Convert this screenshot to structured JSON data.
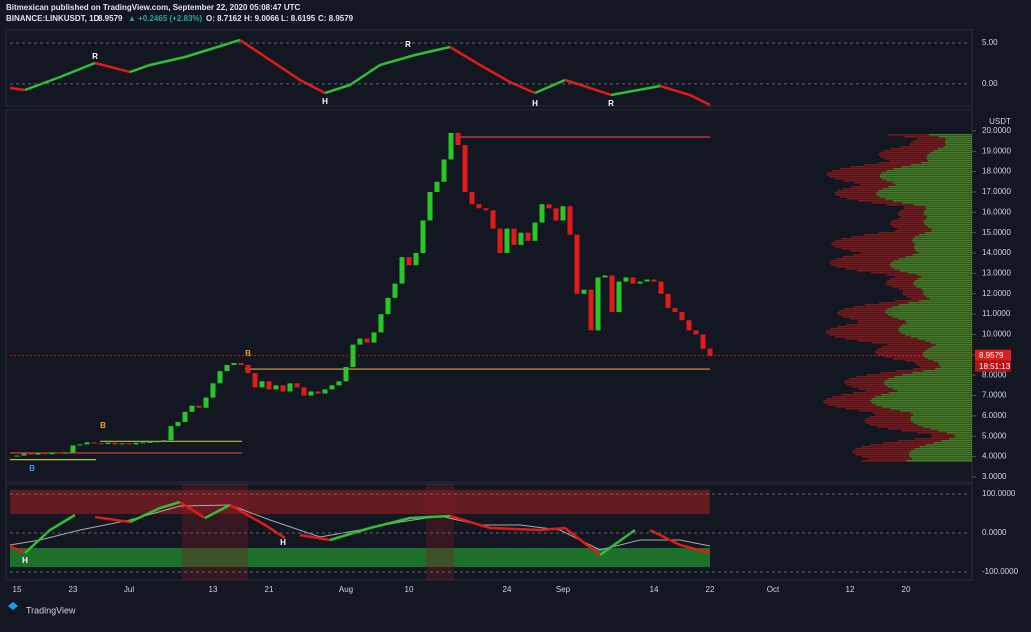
{
  "header": {
    "publisher": "Bitmexican published on TradingView.com, September 22, 2020 05:08:47 UTC",
    "symbol": "BINANCE:LINKUSDT, 1D",
    "last": "8.9579",
    "change": "▲ +0.2465 (+2.83%)",
    "open": "O: 8.7162",
    "high": "H: 9.0066",
    "low": "L: 8.6195",
    "close": "C: 8.9579"
  },
  "footer": "TradingView",
  "chart_data": {
    "type": "candlestick",
    "currency": "USDT",
    "categories": [
      "15",
      null,
      null,
      null,
      null,
      null,
      null,
      null,
      "23",
      null,
      null,
      null,
      null,
      null,
      null,
      null,
      "Jul",
      null,
      null,
      null,
      null,
      null,
      null,
      null,
      null,
      null,
      null,
      null,
      "13",
      null,
      null,
      null,
      null,
      null,
      null,
      null,
      "21",
      null,
      null,
      null,
      null,
      null,
      null,
      null,
      null,
      null,
      null,
      "Aug",
      null,
      null,
      null,
      null,
      null,
      null,
      null,
      null,
      "10",
      null,
      null,
      null,
      null,
      null,
      null,
      null,
      null,
      null,
      null,
      null,
      null,
      null,
      "24",
      null,
      null,
      null,
      null,
      null,
      null,
      null,
      "Sep",
      null,
      null,
      null,
      null,
      null,
      null,
      null,
      null,
      null,
      null,
      null,
      null,
      "14",
      null,
      null,
      null,
      null,
      null,
      null,
      null,
      "22",
      null,
      null,
      null,
      null,
      null,
      null,
      null,
      null,
      "Oct",
      null,
      null,
      null,
      null,
      null,
      null,
      null,
      null,
      null,
      null,
      "12",
      null,
      null,
      null,
      null,
      null,
      null,
      null,
      "20",
      null,
      null,
      null,
      null,
      null,
      null,
      null,
      null,
      null,
      null
    ],
    "values": [
      4.05,
      4.15,
      4.1,
      4.18,
      4.12,
      4.2,
      4.15,
      4.2,
      4.55,
      4.6,
      4.7,
      4.65,
      4.62,
      4.68,
      4.6,
      4.65,
      4.6,
      4.68,
      4.7,
      4.72,
      4.75,
      4.8,
      5.5,
      5.7,
      6.2,
      6.5,
      6.4,
      6.9,
      7.6,
      8.2,
      8.5,
      8.6,
      8.5,
      8.1,
      7.4,
      7.7,
      7.3,
      7.5,
      7.2,
      7.6,
      7.4,
      7.0,
      7.2,
      7.1,
      7.3,
      7.5,
      7.7,
      8.4,
      9.5,
      9.8,
      9.6,
      10.1,
      11.0,
      11.8,
      12.5,
      13.8,
      13.4,
      14.0,
      15.6,
      17.0,
      17.5,
      18.6,
      19.9,
      19.3,
      17.0,
      16.4,
      16.2,
      16.1,
      15.2,
      14.0,
      15.2,
      14.4,
      15.0,
      14.6,
      15.5,
      16.4,
      16.2,
      15.6,
      16.3,
      14.9,
      12.0,
      12.2,
      10.2,
      12.8,
      12.9,
      11.1,
      12.6,
      12.8,
      12.5,
      12.6,
      12.7,
      12.6,
      12.0,
      11.3,
      11.1,
      10.7,
      10.2,
      10.0,
      9.3,
      8.9579,
      null,
      null,
      null,
      null,
      null,
      null,
      null,
      null,
      null,
      null,
      null,
      null,
      null,
      null,
      null,
      null,
      null,
      null,
      null,
      null,
      null,
      null,
      null,
      null,
      null,
      null,
      null,
      null,
      null,
      null,
      null,
      null,
      null,
      null,
      null,
      null,
      null,
      null
    ],
    "up_color": "#26c826",
    "down_color": "#e01b1b",
    "ylim": [
      2.85,
      20.93
    ],
    "yticks": [
      {
        "value": 3,
        "label": "3.0000"
      },
      {
        "value": 4,
        "label": "4.0000"
      },
      {
        "value": 5,
        "label": "5.0000"
      },
      {
        "value": 6,
        "label": "6.0000"
      },
      {
        "value": 7,
        "label": "7.0000"
      },
      {
        "value": 8,
        "label": "8.0000"
      },
      {
        "value": 9,
        "label": "9.0000"
      },
      {
        "value": 10,
        "label": "10.0000"
      },
      {
        "value": 11,
        "label": "11.0000"
      },
      {
        "value": 12,
        "label": "12.0000"
      },
      {
        "value": 13,
        "label": "13.0000"
      },
      {
        "value": 14,
        "label": "14.0000"
      },
      {
        "value": 15,
        "label": "15.0000"
      },
      {
        "value": 16,
        "label": "16.0000"
      },
      {
        "value": 17,
        "label": "17.0000"
      },
      {
        "value": 18,
        "label": "18.0000"
      },
      {
        "value": 19,
        "label": "19.0000"
      },
      {
        "value": 20,
        "label": "20.0000"
      }
    ],
    "last_price": 8.9579,
    "timer": "18:51:13",
    "levels": [
      {
        "value": 19.7,
        "color": "#d84040"
      },
      {
        "value": 8.3,
        "color": "#e8a33a"
      },
      {
        "value": 4.75,
        "color": "#b8c23a"
      },
      {
        "value": 4.18,
        "color": "#d84040"
      },
      {
        "value": 3.85,
        "color": "#b8c23a"
      }
    ],
    "markers": [
      "B",
      "B",
      "B",
      "R",
      "R",
      "H",
      "H",
      "R",
      "H",
      "H"
    ],
    "top_panel": {
      "ylim": [
        -4.05,
        5.0
      ],
      "yticks": [
        {
          "value": 5,
          "label": "5.00"
        },
        {
          "value": 0,
          "label": "0.00"
        }
      ]
    },
    "bottom_panel": {
      "ylim": [
        -100,
        100
      ],
      "yticks": [
        {
          "value": 100,
          "label": "100.0000"
        },
        {
          "value": 0,
          "label": "0.0000"
        },
        {
          "value": -100,
          "label": "-100.0000"
        }
      ]
    }
  }
}
